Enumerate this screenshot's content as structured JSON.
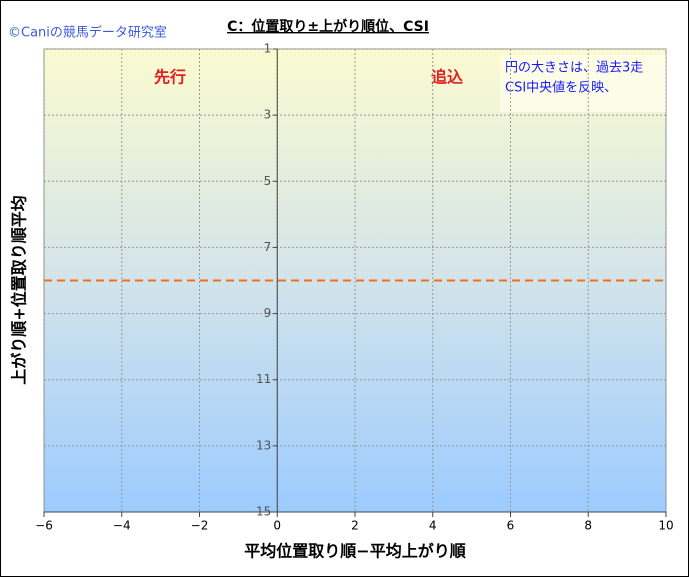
{
  "chart_data": {
    "type": "scatter",
    "title": "C：位置取り±上がり順位、CSI",
    "credit": "©Caniの競馬データ研究室",
    "x_label": "平均位置取り順−平均上がり順",
    "y_label": "上がり順+位置取り順平均",
    "annotations": [
      "先行",
      "追込"
    ],
    "note": [
      "円の大きさは、過去3走",
      "CSI中央値を反映、"
    ],
    "series": [],
    "xlim": [
      -6,
      10
    ],
    "xticks": [
      {
        "value": -6,
        "label": "−6"
      },
      {
        "value": -4,
        "label": "−4"
      },
      {
        "value": -2,
        "label": "−2"
      },
      0,
      2,
      4,
      6,
      8,
      10
    ],
    "ylim": [
      1,
      15
    ],
    "y_inverted": true,
    "yticks": [
      1,
      3,
      5,
      7,
      9,
      11,
      13,
      15
    ],
    "hline": {
      "value": 8,
      "color": "#f07020"
    },
    "grid": true
  }
}
